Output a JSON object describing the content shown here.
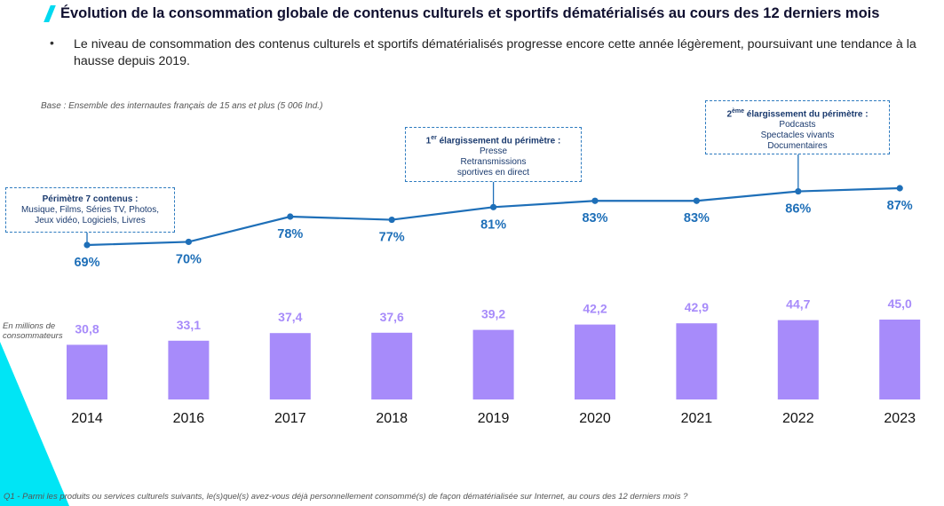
{
  "header": {
    "title": "Évolution de la consommation globale de contenus culturels et sportifs dématérialisés au cours des 12 derniers mois",
    "bullet": "Le niveau de consommation des contenus culturels et sportifs dématérialisés progresse encore cette année légèrement, poursuivant une tendance à la hausse depuis 2019."
  },
  "notes": {
    "base": "Base : Ensemble des internautes français de 15 ans et plus (5 006 Ind.)",
    "unit": "En millions de consommateurs",
    "footnote": "Q1 - Parmi les produits ou services culturels suivants, le(s)quel(s) avez-vous déjà personnellement consommé(s) de façon dématérialisée sur Internet, au cours des 12 derniers mois ?"
  },
  "scopes": [
    {
      "heading": "Périmètre 7 contenus :",
      "lines": [
        "Musique, Films, Séries TV, Photos,",
        "Jeux vidéo, Logiciels, Livres"
      ]
    },
    {
      "heading_num": "1",
      "heading_sup": "er",
      "heading_rest": " élargissement du périmètre :",
      "lines": [
        "Presse",
        "Retransmissions",
        "sportives en direct"
      ]
    },
    {
      "heading_num": "2",
      "heading_sup": "ème",
      "heading_rest": " élargissement du périmètre :",
      "lines": [
        "Podcasts",
        "Spectacles vivants",
        "Documentaires"
      ]
    }
  ],
  "colors": {
    "line": "#1e6fb8",
    "bar": "#a78bfa",
    "accent": "#00d9f0"
  },
  "chart_data": [
    {
      "type": "line",
      "categories": [
        "2014",
        "2016",
        "2017",
        "2018",
        "2019",
        "2020",
        "2021",
        "2022",
        "2023"
      ],
      "values": [
        69,
        70,
        78,
        77,
        81,
        83,
        83,
        86,
        87
      ],
      "labels": [
        "69%",
        "70%",
        "78%",
        "77%",
        "81%",
        "83%",
        "83%",
        "86%",
        "87%"
      ],
      "unit": "%"
    },
    {
      "type": "bar",
      "categories": [
        "2014",
        "2016",
        "2017",
        "2018",
        "2019",
        "2020",
        "2021",
        "2022",
        "2023"
      ],
      "values": [
        30.8,
        33.1,
        37.4,
        37.6,
        39.2,
        42.2,
        42.9,
        44.7,
        45.0
      ],
      "labels": [
        "30,8",
        "33,1",
        "37,4",
        "37,6",
        "39,2",
        "42,2",
        "42,9",
        "44,7",
        "45,0"
      ],
      "ylabel": "En millions de consommateurs"
    }
  ]
}
